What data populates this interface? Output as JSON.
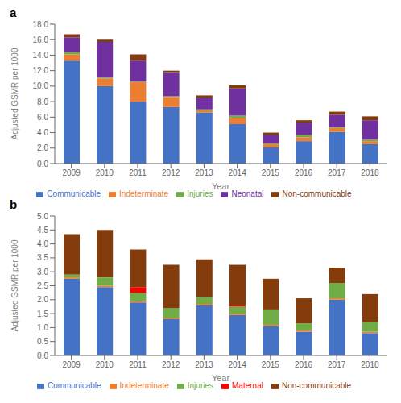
{
  "chart_data": [
    {
      "type": "bar",
      "title": "a",
      "stacked": true,
      "grid": false,
      "legend": "bottom",
      "xlabel": "Year",
      "ylabel": "Adjusted GSMR per 1000",
      "categories": [
        "2009",
        "2010",
        "2011",
        "2012",
        "2013",
        "2014",
        "2015",
        "2016",
        "2017",
        "2018"
      ],
      "series": [
        {
          "name": "Communicable",
          "color": "#4472C4",
          "values": [
            13.3,
            10.0,
            8.0,
            7.3,
            6.6,
            5.1,
            2.1,
            2.9,
            4.1,
            2.5
          ]
        },
        {
          "name": "Indeterminate",
          "color": "#ED7D31",
          "values": [
            0.8,
            1.0,
            2.5,
            1.3,
            0.3,
            0.8,
            0.4,
            0.5,
            0.5,
            0.4
          ]
        },
        {
          "name": "Injuries",
          "color": "#70AD47",
          "values": [
            0.3,
            0.1,
            0.1,
            0.1,
            0.1,
            0.3,
            0.1,
            0.3,
            0.1,
            0.2
          ]
        },
        {
          "name": "Neonatal",
          "color": "#7030A0",
          "values": [
            1.9,
            4.6,
            2.7,
            3.1,
            1.5,
            3.5,
            1.1,
            1.6,
            1.6,
            2.5
          ]
        },
        {
          "name": "Non-communicable",
          "color": "#843C0C",
          "values": [
            0.4,
            0.3,
            0.8,
            0.2,
            0.3,
            0.4,
            0.3,
            0.3,
            0.4,
            0.5
          ]
        }
      ],
      "ylim": [
        0,
        18.0
      ],
      "yticks": [
        {
          "value": 0,
          "label": "0.0"
        },
        {
          "value": 2,
          "label": "2.0"
        },
        {
          "value": 4,
          "label": "4.0"
        },
        {
          "value": 6,
          "label": "6.0"
        },
        {
          "value": 8,
          "label": "8.0"
        },
        {
          "value": 10,
          "label": "10.0"
        },
        {
          "value": 12,
          "label": "12.0"
        },
        {
          "value": 14,
          "label": "14.0"
        },
        {
          "value": 16,
          "label": "16.0"
        },
        {
          "value": 18,
          "label": "18.0"
        }
      ]
    },
    {
      "type": "bar",
      "title": "b",
      "stacked": true,
      "grid": false,
      "legend": "bottom",
      "xlabel": "Year",
      "ylabel": "Adjusted GSMR per 1000",
      "categories": [
        "2009",
        "2010",
        "2011",
        "2012",
        "2013",
        "2014",
        "2015",
        "2016",
        "2017",
        "2018"
      ],
      "series": [
        {
          "name": "Communicable",
          "color": "#4472C4",
          "values": [
            2.75,
            2.45,
            1.9,
            1.3,
            1.8,
            1.45,
            1.05,
            0.85,
            2.0,
            0.8
          ]
        },
        {
          "name": "Indeterminate",
          "color": "#ED7D31",
          "values": [
            0.05,
            0.05,
            0.05,
            0.05,
            0.05,
            0.05,
            0.05,
            0.05,
            0.05,
            0.05
          ]
        },
        {
          "name": "Injuries",
          "color": "#70AD47",
          "values": [
            0.1,
            0.3,
            0.3,
            0.35,
            0.25,
            0.25,
            0.55,
            0.25,
            0.55,
            0.35
          ]
        },
        {
          "name": "Maternal",
          "color": "#FF0000",
          "values": [
            0.0,
            0.0,
            0.2,
            0.0,
            0.0,
            0.05,
            0.0,
            0.0,
            0.0,
            0.0
          ]
        },
        {
          "name": "Non-communicable",
          "color": "#843C0C",
          "values": [
            1.45,
            1.7,
            1.35,
            1.55,
            1.35,
            1.45,
            1.1,
            0.9,
            0.55,
            1.0
          ]
        }
      ],
      "ylim": [
        0,
        5.0
      ],
      "yticks": [
        {
          "value": 0,
          "label": "0.0"
        },
        0.5,
        {
          "value": 1,
          "label": "1.0"
        },
        1.5,
        {
          "value": 2,
          "label": "2.0"
        },
        2.5,
        {
          "value": 3,
          "label": "3.0"
        },
        3.5,
        {
          "value": 4,
          "label": "4.0"
        },
        4.5,
        {
          "value": 5,
          "label": "5.0"
        }
      ]
    }
  ]
}
